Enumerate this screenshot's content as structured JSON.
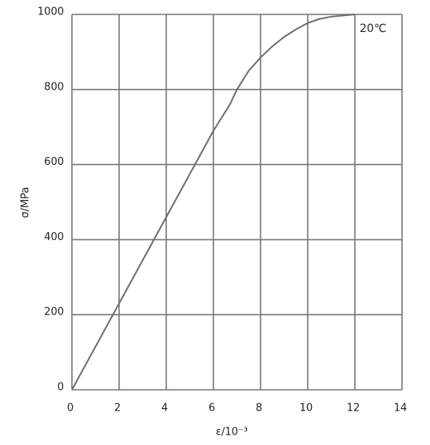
{
  "chart_data": {
    "type": "line",
    "x_label": "ε/10⁻³",
    "y_label": "σ/MPa",
    "annotation": "20℃",
    "x": [
      0,
      2,
      4,
      6,
      6.7,
      7,
      7.5,
      8,
      8.5,
      9,
      9.5,
      10,
      10.5,
      11,
      12
    ],
    "series": [
      {
        "color": "#6e6e6e",
        "values": [
          0,
          230,
          460,
          690,
          760,
          800,
          850,
          885,
          915,
          940,
          960,
          977,
          988,
          994,
          1000
        ]
      }
    ],
    "xlim": [
      0,
      14
    ],
    "xticks": [
      0,
      2,
      4,
      6,
      8,
      10,
      12,
      14
    ],
    "ylim": [
      0,
      1000
    ],
    "yticks": [
      0,
      200,
      400,
      600,
      800,
      1000
    ],
    "grid": true
  }
}
